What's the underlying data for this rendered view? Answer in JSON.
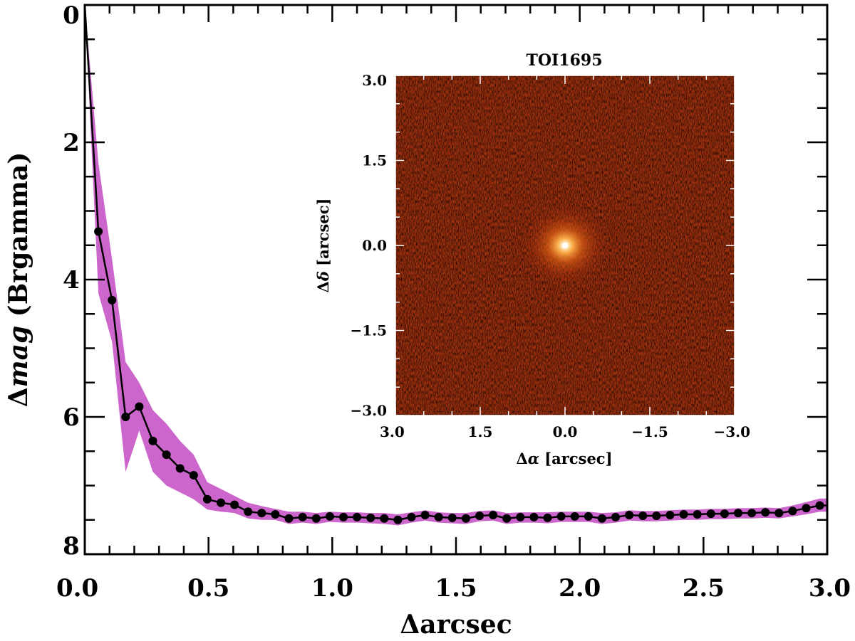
{
  "chart_data": [
    {
      "type": "line",
      "name": "contrast-curve",
      "title": "",
      "xlabel": "Δarcsec",
      "ylabel_prefix": "Δ",
      "ylabel_italic": "mag",
      "ylabel_suffix": " (Brgamma)",
      "xlim": [
        0.0,
        3.0
      ],
      "ylim": [
        8,
        0
      ],
      "y_inverted": true,
      "x_ticks": [
        0.0,
        0.5,
        1.0,
        1.5,
        2.0,
        2.5,
        3.0
      ],
      "x_tick_labels": [
        "0.0",
        "0.5",
        "1.0",
        "1.5",
        "2.0",
        "2.5",
        "3.0"
      ],
      "y_ticks": [
        0,
        2,
        4,
        6,
        8
      ],
      "y_tick_labels": [
        "0",
        "2",
        "4",
        "6",
        "8"
      ],
      "colors": {
        "line": "#000000",
        "band": "#cc66cc"
      },
      "series": [
        {
          "name": "contrast",
          "x": [
            0.0,
            0.055,
            0.11,
            0.165,
            0.22,
            0.275,
            0.33,
            0.385,
            0.44,
            0.495,
            0.55,
            0.605,
            0.66,
            0.715,
            0.77,
            0.825,
            0.88,
            0.935,
            0.99,
            1.045,
            1.1,
            1.155,
            1.21,
            1.265,
            1.32,
            1.375,
            1.43,
            1.485,
            1.54,
            1.595,
            1.65,
            1.705,
            1.76,
            1.815,
            1.87,
            1.925,
            1.98,
            2.035,
            2.09,
            2.145,
            2.2,
            2.255,
            2.31,
            2.365,
            2.42,
            2.475,
            2.53,
            2.585,
            2.64,
            2.695,
            2.75,
            2.805,
            2.86,
            2.915,
            2.97,
            3.0
          ],
          "y": [
            0.0,
            3.3,
            4.3,
            6.0,
            5.85,
            6.35,
            6.55,
            6.75,
            6.85,
            7.2,
            7.25,
            7.28,
            7.38,
            7.4,
            7.42,
            7.48,
            7.46,
            7.48,
            7.45,
            7.46,
            7.46,
            7.47,
            7.48,
            7.5,
            7.46,
            7.43,
            7.46,
            7.47,
            7.48,
            7.44,
            7.43,
            7.48,
            7.46,
            7.46,
            7.47,
            7.45,
            7.45,
            7.45,
            7.48,
            7.46,
            7.43,
            7.44,
            7.44,
            7.43,
            7.42,
            7.42,
            7.41,
            7.41,
            7.4,
            7.4,
            7.39,
            7.4,
            7.37,
            7.33,
            7.29,
            7.29
          ],
          "band_upper": [
            0.0,
            2.3,
            3.7,
            5.2,
            5.5,
            5.9,
            6.1,
            6.35,
            6.55,
            6.95,
            7.05,
            7.15,
            7.25,
            7.3,
            7.34,
            7.38,
            7.38,
            7.4,
            7.38,
            7.39,
            7.39,
            7.4,
            7.4,
            7.42,
            7.39,
            7.36,
            7.39,
            7.4,
            7.4,
            7.37,
            7.36,
            7.4,
            7.39,
            7.39,
            7.39,
            7.38,
            7.38,
            7.38,
            7.4,
            7.39,
            7.36,
            7.37,
            7.37,
            7.36,
            7.35,
            7.35,
            7.34,
            7.34,
            7.33,
            7.33,
            7.32,
            7.33,
            7.29,
            7.24,
            7.19,
            7.19
          ],
          "band_lower": [
            0.0,
            4.2,
            4.9,
            6.8,
            6.2,
            6.8,
            7.0,
            7.1,
            7.2,
            7.35,
            7.38,
            7.4,
            7.48,
            7.5,
            7.5,
            7.56,
            7.54,
            7.56,
            7.53,
            7.54,
            7.54,
            7.55,
            7.56,
            7.58,
            7.54,
            7.51,
            7.54,
            7.55,
            7.56,
            7.52,
            7.51,
            7.56,
            7.54,
            7.54,
            7.55,
            7.53,
            7.53,
            7.53,
            7.56,
            7.54,
            7.51,
            7.52,
            7.52,
            7.51,
            7.5,
            7.5,
            7.49,
            7.49,
            7.48,
            7.48,
            7.47,
            7.48,
            7.45,
            7.42,
            7.38,
            7.38
          ]
        }
      ]
    },
    {
      "type": "heatmap",
      "name": "inset-image",
      "title": "TOI1695",
      "xlabel_prefix": "Δ",
      "xlabel_symbol": "α",
      "xlabel_suffix": " [arcsec]",
      "ylabel_prefix": "Δ",
      "ylabel_symbol": "δ",
      "ylabel_suffix": " [arcsec]",
      "xlim": [
        3.0,
        -3.0
      ],
      "ylim": [
        -3.0,
        3.0
      ],
      "x_tick_labels": [
        "3.0",
        "1.5",
        "0.0",
        "−1.5",
        "−3.0"
      ],
      "y_tick_labels": [
        "−3.0",
        "−1.5",
        "0.0",
        "1.5",
        "3.0"
      ],
      "source_center": [
        0.0,
        0.0
      ],
      "colors": {
        "background": "#9a2a0c",
        "core": "#fff4d8",
        "halo": "#f07a1a"
      }
    }
  ]
}
